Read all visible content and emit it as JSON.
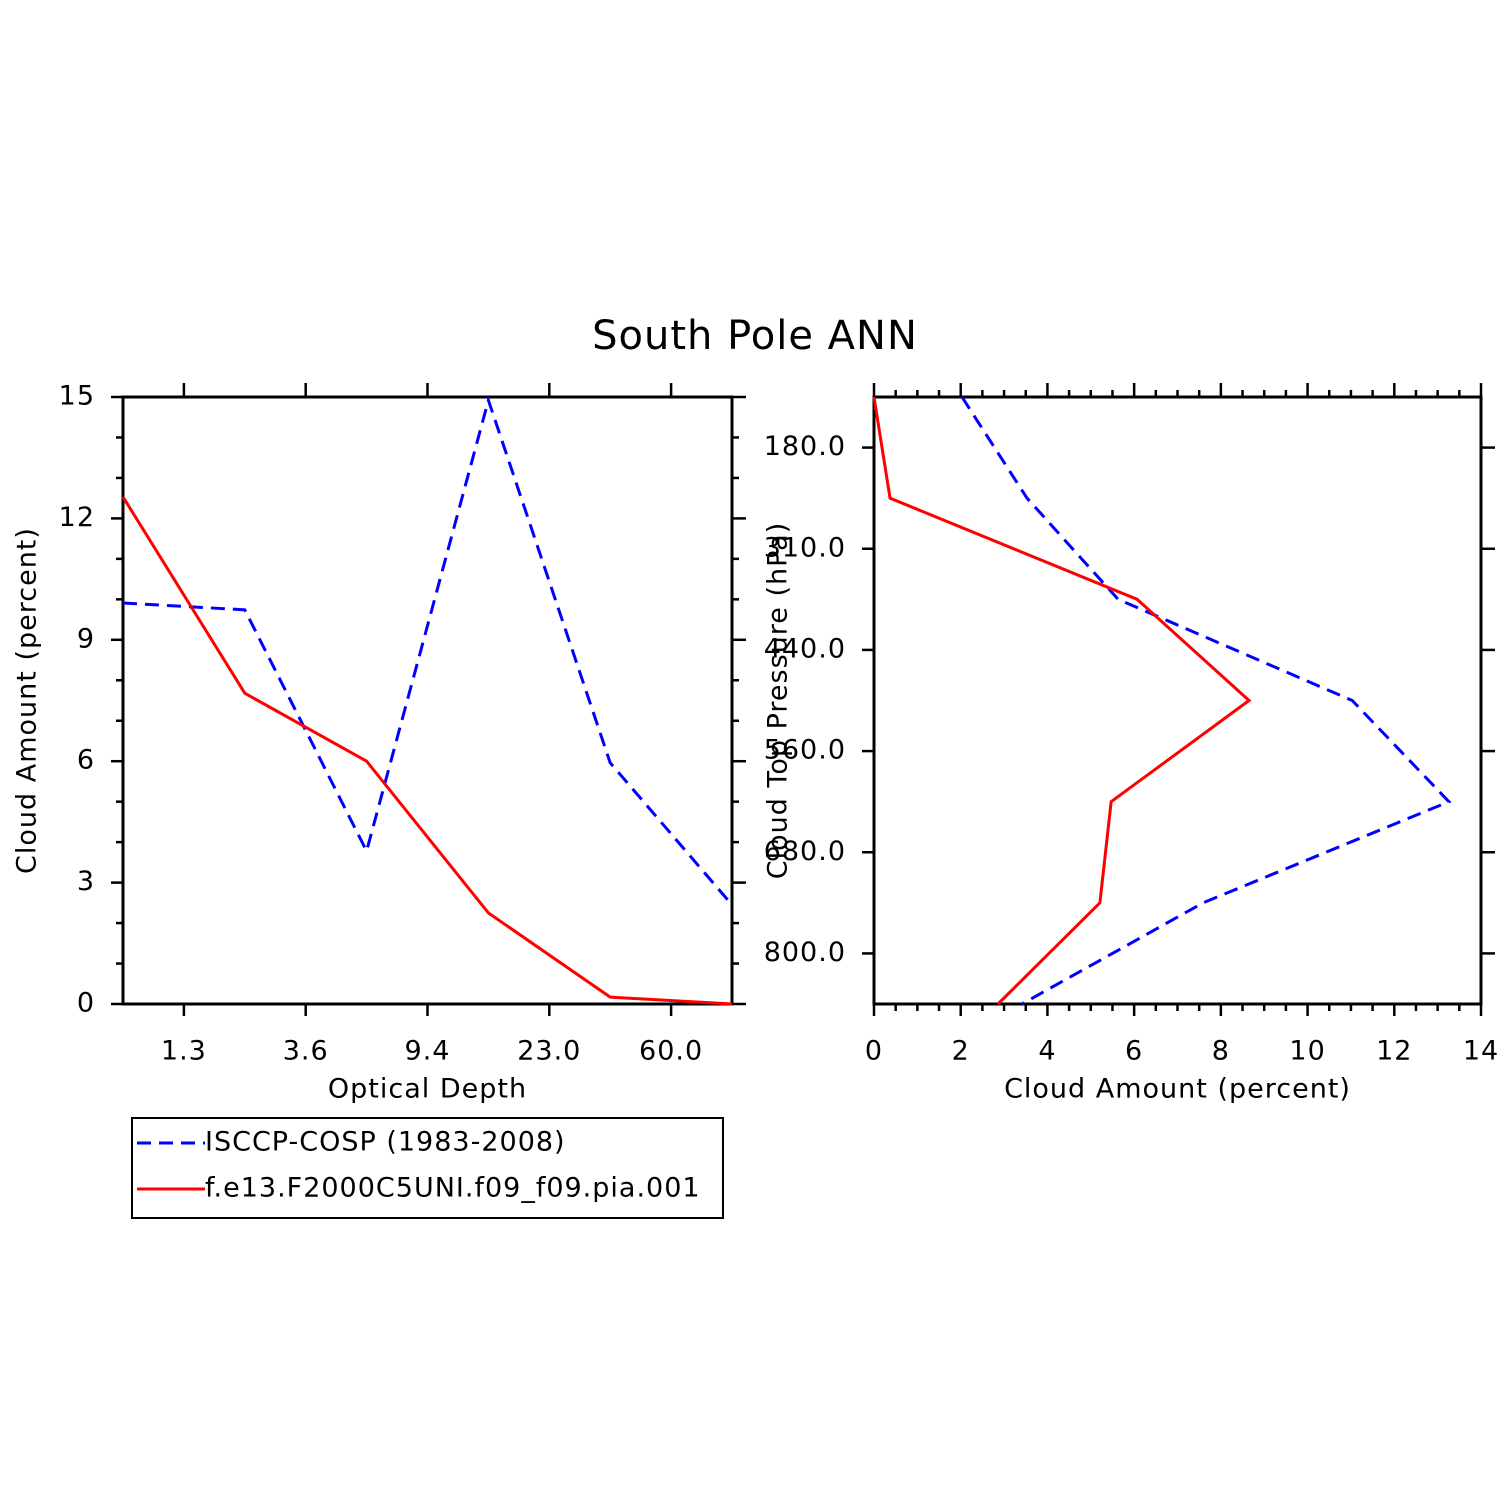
{
  "title": "South Pole ANN",
  "chart_data": [
    {
      "type": "line",
      "orientation": "vertical",
      "xlabel": "Optical Depth",
      "ylabel": "Cloud Amount (percent)",
      "x": [
        0,
        1,
        2,
        3,
        4,
        5
      ],
      "xlim": [
        0,
        5
      ],
      "xticks": [
        {
          "value": 0.5,
          "label": "1.3"
        },
        {
          "value": 1.5,
          "label": "3.6"
        },
        {
          "value": 2.5,
          "label": "9.4"
        },
        {
          "value": 3.5,
          "label": "23.0"
        },
        {
          "value": 4.5,
          "label": "60.0"
        }
      ],
      "ylim": [
        0,
        15
      ],
      "yticks": [
        0,
        3,
        6,
        9,
        12,
        15
      ],
      "legend": "below",
      "series": [
        {
          "name": "ISCCP-COSP (1983-2008)",
          "color": "#0000ff",
          "dash": true,
          "values": [
            9.91,
            9.74,
            3.78,
            14.92,
            5.96,
            2.45
          ]
        },
        {
          "name": "f.e13.F2000C5UNI.f09_f09.pia.001",
          "color": "#ff0000",
          "dash": false,
          "values": [
            12.53,
            7.68,
            6.0,
            2.25,
            0.17,
            0
          ]
        }
      ]
    },
    {
      "type": "line",
      "orientation": "horizontal",
      "xlabel": "Cloud Amount (percent)",
      "ylabel": "Cloud Top Pressure (hPa)",
      "y": [
        0,
        1,
        2,
        3,
        4,
        5,
        6
      ],
      "ylim": [
        6,
        0
      ],
      "yticks": [
        {
          "value": 0.5,
          "label": "180.0"
        },
        {
          "value": 1.5,
          "label": "310.0"
        },
        {
          "value": 2.5,
          "label": "440.0"
        },
        {
          "value": 3.5,
          "label": "560.0"
        },
        {
          "value": 4.5,
          "label": "680.0"
        },
        {
          "value": 5.5,
          "label": "800.0"
        }
      ],
      "xlim": [
        0,
        14
      ],
      "xticks": [
        0,
        2,
        4,
        6,
        8,
        10,
        12,
        14
      ],
      "series": [
        {
          "color": "#0000ff",
          "dash": true,
          "values": [
            2.03,
            3.53,
            5.63,
            11.03,
            13.26,
            7.59,
            3.41
          ]
        },
        {
          "color": "#ff0000",
          "dash": false,
          "values": [
            0,
            0.37,
            6.07,
            8.65,
            5.47,
            5.21,
            2.86
          ]
        }
      ]
    }
  ]
}
